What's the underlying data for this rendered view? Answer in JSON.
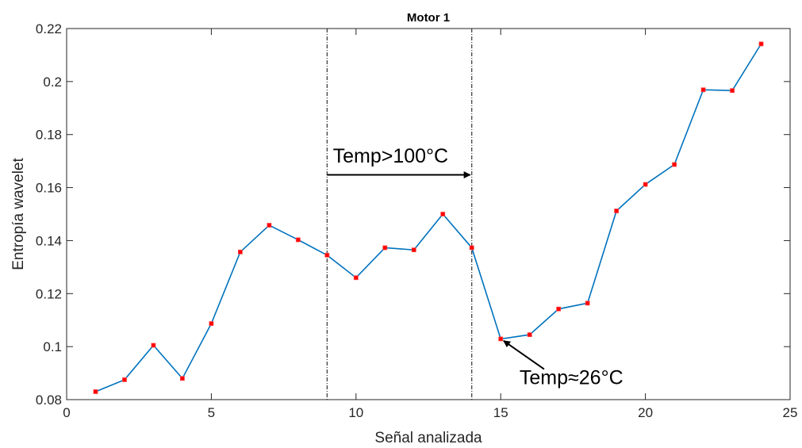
{
  "chart_data": {
    "type": "line",
    "title": "Motor 1",
    "xlabel": "Señal analizada",
    "ylabel": "Entropía wavelet",
    "xlim": [
      0,
      25
    ],
    "ylim": [
      0.08,
      0.22
    ],
    "xticks": [
      0,
      5,
      10,
      15,
      20,
      25
    ],
    "xtick_labels": [
      "0",
      "5",
      "10",
      "15",
      "20",
      "25"
    ],
    "yticks": [
      0.08,
      0.1,
      0.12,
      0.14,
      0.16,
      0.18,
      0.2,
      0.22
    ],
    "ytick_labels": [
      "0.08",
      "0.1",
      "0.12",
      "0.14",
      "0.16",
      "0.18",
      "0.2",
      "0.22"
    ],
    "grid": false,
    "line_color": "#0072BD",
    "marker_color": "#FF0000",
    "series": [
      {
        "x": [
          1,
          2,
          3,
          4,
          5,
          6,
          7,
          8,
          9,
          10,
          11,
          12,
          13,
          14,
          15,
          16,
          17,
          18,
          19,
          20,
          21,
          22,
          23,
          24
        ],
        "values": [
          0.083,
          0.0875,
          0.1005,
          0.088,
          0.1087,
          0.1357,
          0.1458,
          0.1403,
          0.1345,
          0.126,
          0.1373,
          0.1365,
          0.15,
          0.1373,
          0.1029,
          0.1045,
          0.1142,
          0.1164,
          0.1512,
          0.1612,
          0.1687,
          0.1969,
          0.1966,
          0.2142
        ]
      }
    ],
    "vlines": [
      9,
      14
    ],
    "annotations": [
      {
        "text": "Temp>100°C",
        "type": "double-arrow-right",
        "x_start": 9,
        "x_end": 14,
        "y": 0.1648,
        "text_x": 9.2,
        "text_y": 0.1695
      },
      {
        "text": "Temp≈26°C",
        "type": "arrow",
        "from_x": 16.5,
        "from_y": 0.0915,
        "to_x": 15.1,
        "to_y": 0.1022,
        "text_x": 15.65,
        "text_y": 0.0858
      }
    ]
  }
}
